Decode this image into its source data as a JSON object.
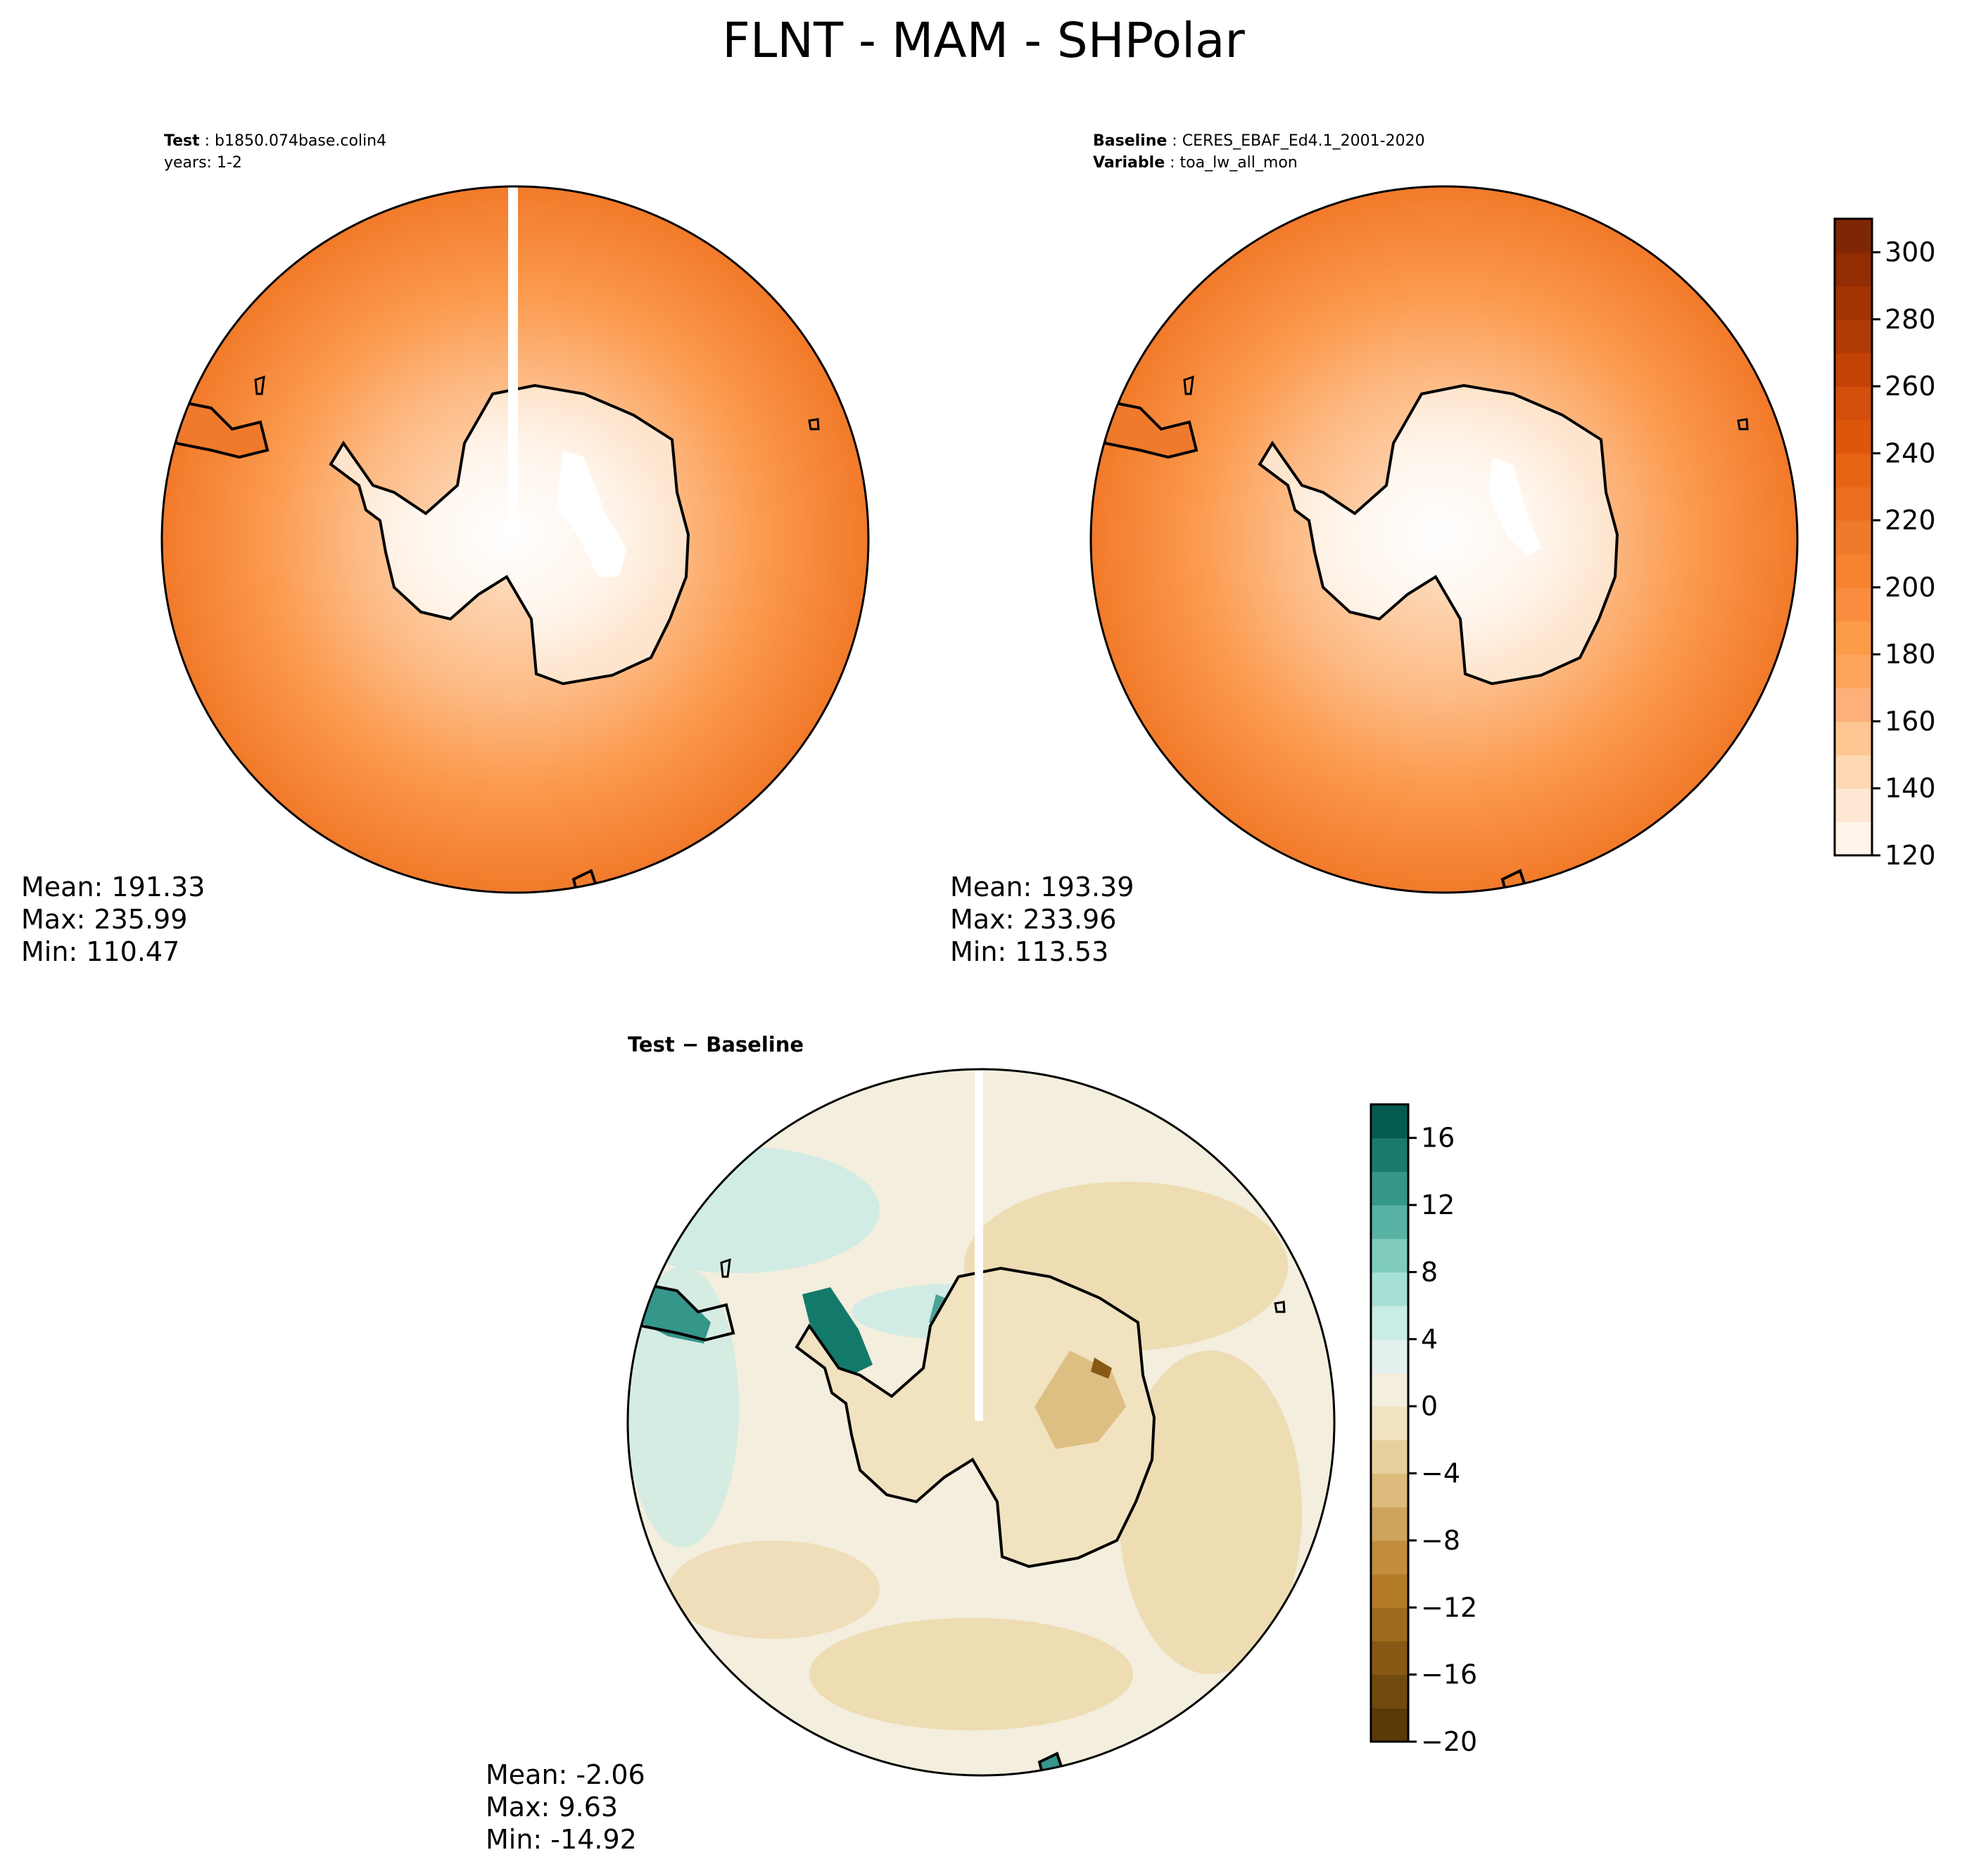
{
  "title": "FLNT - MAM - SHPolar",
  "test_panel": {
    "label": "Test",
    "name": "b1850.074base.colin4",
    "years": "years: 1-2",
    "stats": {
      "mean": "Mean: 191.33",
      "max": "Max: 235.99",
      "min": "Min: 110.47"
    }
  },
  "baseline_panel": {
    "label": "Baseline",
    "name": "CERES_EBAF_Ed4.1_2001-2020",
    "variable_label": "Variable",
    "variable": "toa_lw_all_mon",
    "stats": {
      "mean": "Mean: 193.39",
      "max": "Max: 233.96",
      "min": "Min: 113.53"
    }
  },
  "diff_panel": {
    "title": "Test − Baseline",
    "stats": {
      "mean": "Mean: -2.06",
      "max": "Max:  9.63",
      "min": "Min: -14.92"
    }
  },
  "colorbar_main": {
    "range": [
      120,
      310
    ],
    "levels": [
      120,
      130,
      140,
      150,
      160,
      170,
      180,
      190,
      200,
      210,
      220,
      230,
      240,
      250,
      260,
      270,
      280,
      290,
      300,
      310
    ],
    "tick_labels": [
      "120",
      "140",
      "160",
      "180",
      "200",
      "220",
      "240",
      "260",
      "280",
      "300"
    ],
    "tick_values": [
      120,
      140,
      160,
      180,
      200,
      220,
      240,
      260,
      280,
      300
    ],
    "colors": [
      "#fff5eb",
      "#fee8d3",
      "#fdd8b3",
      "#fdc692",
      "#fdb07a",
      "#fda45d",
      "#fc9b48",
      "#f98c3f",
      "#f5822e",
      "#f07a2c",
      "#eb6e20",
      "#e66515",
      "#dd560c",
      "#d24e0a",
      "#c34206",
      "#b03a04",
      "#a23303",
      "#922c03",
      "#7f2704"
    ]
  },
  "colorbar_diff": {
    "range": [
      -20,
      18
    ],
    "levels": [
      -20,
      -18,
      -16,
      -14,
      -12,
      -10,
      -8,
      -6,
      -4,
      -2,
      0,
      2,
      4,
      6,
      8,
      10,
      12,
      14,
      16,
      18
    ],
    "tick_labels": [
      "−20",
      "−16",
      "−12",
      "−8",
      "−4",
      "0",
      "4",
      "8",
      "12",
      "16"
    ],
    "tick_values": [
      -20,
      -16,
      -12,
      -8,
      -4,
      0,
      4,
      8,
      12,
      16
    ],
    "colors": [
      "#5c3a08",
      "#714a0f",
      "#875914",
      "#9e6a1e",
      "#b47b28",
      "#c28e3c",
      "#cfa45c",
      "#dcbb7c",
      "#e8d09e",
      "#f1e2c0",
      "#f3eedd",
      "#e3f0ed",
      "#c9ece5",
      "#a6dfd5",
      "#7fccbd",
      "#58b2a3",
      "#35968a",
      "#1b7a6e",
      "#065b4f"
    ]
  },
  "colors": {
    "ocean_far": "#f3812f",
    "ocean_mid": "#fb9a4e",
    "ice_edge": "#fdba84",
    "land": "#fde4cc",
    "plateau": "#ffffff",
    "diff_neutral": "#f3eedd",
    "diff_warm": "#ecd7a9",
    "diff_cool": "#cdebe4",
    "diff_dark_teal": "#137a6b",
    "coast": "#000000"
  }
}
